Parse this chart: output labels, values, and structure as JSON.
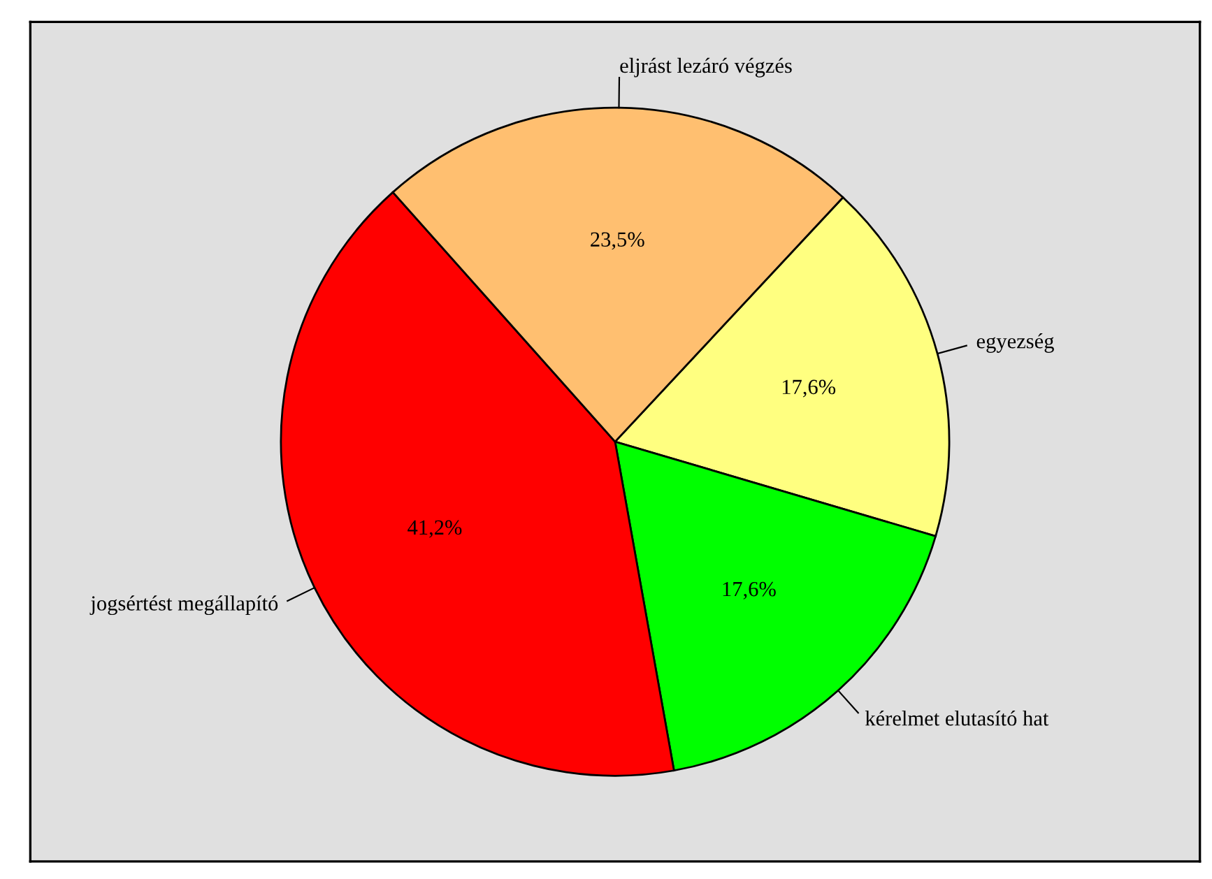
{
  "chart_data": {
    "type": "pie",
    "categories": [
      "egyezség",
      "kérelmet elutasító hat",
      "jogsértést megállapító",
      "eljrást lezáró végzés"
    ],
    "values": [
      17.6,
      17.6,
      41.2,
      23.5
    ],
    "colors": [
      "#ffff80",
      "#00ff00",
      "#ff0000",
      "#ffbf70"
    ],
    "value_labels": [
      "17,6%",
      "17,6%",
      "41,2%",
      "23,5%"
    ]
  }
}
